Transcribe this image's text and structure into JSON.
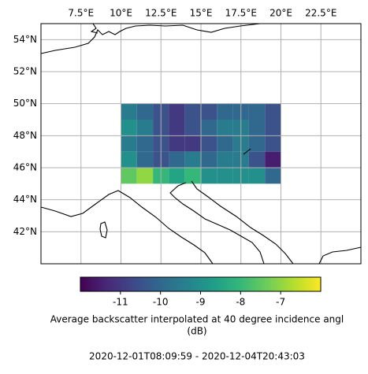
{
  "chart_data": {
    "type": "heatmap",
    "colorbar_label": "Average backscatter interpolated at 40 degree incidence angl",
    "colorbar_unit": "(dB)",
    "subtitle": "2020-12-01T08:09:59 - 2020-12-04T20:43:03",
    "x": [
      10.5,
      11.5,
      12.5,
      13.5,
      14.5,
      15.5,
      16.5,
      17.5,
      18.5,
      19.5
    ],
    "y": [
      49.5,
      48.5,
      47.5,
      46.5,
      45.5
    ],
    "values": [
      [
        -9.5,
        -10,
        -10.5,
        -11,
        -10.5,
        -10.5,
        -10,
        -10,
        -10,
        -10.5
      ],
      [
        -9,
        -9.5,
        -10.5,
        -11,
        -10.5,
        -10,
        -9.5,
        -9.5,
        -10,
        -10.5
      ],
      [
        -9.5,
        -10,
        -10.5,
        -11,
        -11,
        -10.5,
        -10,
        -9.5,
        -10,
        -10.5
      ],
      [
        -9,
        -10,
        -10.5,
        -10,
        -9.5,
        -10,
        -9.5,
        -9.5,
        -10.5,
        -11.5
      ],
      [
        -7.5,
        -7,
        -8,
        -8.5,
        -8,
        -9,
        -9,
        -9,
        -9,
        -10
      ]
    ],
    "xlim": [
      5,
      25
    ],
    "ylim": [
      40,
      55
    ],
    "xticks": [
      {
        "value": 7.5,
        "label": "7.5°E"
      },
      {
        "value": 10,
        "label": "10°E"
      },
      {
        "value": 12.5,
        "label": "12.5°E"
      },
      {
        "value": 15,
        "label": "15°E"
      },
      {
        "value": 17.5,
        "label": "17.5°E"
      },
      {
        "value": 20,
        "label": "20°E"
      },
      {
        "value": 22.5,
        "label": "22.5°E"
      }
    ],
    "yticks": [
      {
        "value": 42,
        "label": "42°N"
      },
      {
        "value": 44,
        "label": "44°N"
      },
      {
        "value": 46,
        "label": "46°N"
      },
      {
        "value": 48,
        "label": "48°N"
      },
      {
        "value": 50,
        "label": "50°N"
      },
      {
        "value": 52,
        "label": "52°N"
      },
      {
        "value": 54,
        "label": "54°N"
      }
    ],
    "clim": [
      -12,
      -6
    ],
    "cticks": [
      -11,
      -10,
      -9,
      -8,
      -7
    ],
    "colormap": "viridis",
    "grid": true
  }
}
